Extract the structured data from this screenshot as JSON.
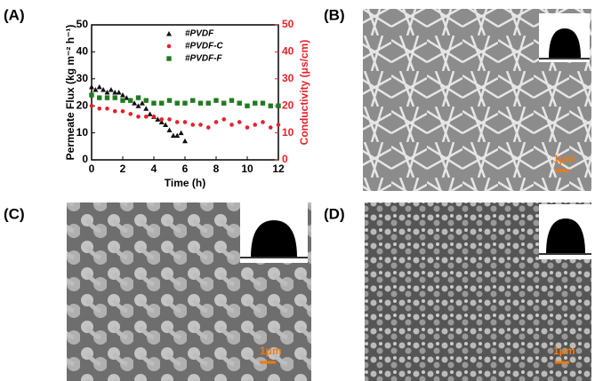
{
  "chart_data": {
    "type": "scatter",
    "xlabel": "Time (h)",
    "ylabel": "Permeate Flux (kg m⁻² h⁻¹)",
    "y2label": "Conductivity (μs/cm)",
    "xlim": [
      0,
      12
    ],
    "xticks": [
      0,
      2,
      4,
      6,
      8,
      10,
      12
    ],
    "ylim": [
      0,
      50
    ],
    "yticks": [
      0,
      10,
      20,
      30,
      40,
      50
    ],
    "y2lim": [
      0,
      50
    ],
    "y2ticks": [
      0,
      10,
      20,
      30,
      40,
      50
    ],
    "y2color": "#e8202a",
    "legend": "top-right",
    "series": [
      {
        "name": "#PVDF",
        "color": "#111111",
        "marker": "triangle",
        "x": [
          0,
          0.25,
          0.5,
          0.75,
          1,
          1.25,
          1.5,
          1.75,
          2,
          2.25,
          2.5,
          2.75,
          3,
          3.25,
          3.5,
          3.75,
          4,
          4.25,
          4.5,
          4.75,
          5,
          5.25,
          5.5,
          5.75,
          6
        ],
        "values": [
          27,
          26,
          27,
          26,
          25,
          26,
          25,
          25,
          24,
          23,
          22,
          21,
          20,
          21,
          19,
          17,
          16,
          15,
          14,
          13,
          11,
          9,
          9,
          10,
          7
        ]
      },
      {
        "name": "#PVDF-C",
        "color": "#e8202a",
        "marker": "circle",
        "x": [
          0,
          0.5,
          1,
          1.5,
          2,
          2.5,
          3,
          3.5,
          4,
          4.5,
          5,
          5.5,
          6,
          6.5,
          7,
          7.5,
          8,
          8.5,
          9,
          9.5,
          10,
          10.5,
          11,
          11.5,
          12
        ],
        "values": [
          20,
          19,
          19,
          18,
          18,
          17,
          16,
          16,
          16,
          15,
          15,
          14,
          14,
          13,
          13,
          12,
          14,
          15,
          13,
          14,
          12,
          13,
          14,
          12,
          13
        ]
      },
      {
        "name": "#PVDF-F",
        "color": "#1f7a1f",
        "marker": "square",
        "x": [
          0,
          0.5,
          1,
          1.5,
          2,
          2.5,
          3,
          3.5,
          4,
          4.5,
          5,
          5.5,
          6,
          6.5,
          7,
          7.5,
          8,
          8.5,
          9,
          9.5,
          10,
          10.5,
          11,
          11.5,
          12
        ],
        "values": [
          24,
          23,
          23,
          23,
          22,
          22,
          23,
          22,
          21,
          21,
          22,
          21,
          21,
          22,
          21,
          21,
          22,
          21,
          22,
          21,
          20,
          21,
          21,
          20,
          20
        ]
      }
    ]
  },
  "panels": {
    "a": "(A)",
    "b": "(B)",
    "c": "(C)",
    "d": "(D)"
  },
  "scale_bars": {
    "b": "1μm",
    "c": "1μm",
    "d": "1μm"
  }
}
